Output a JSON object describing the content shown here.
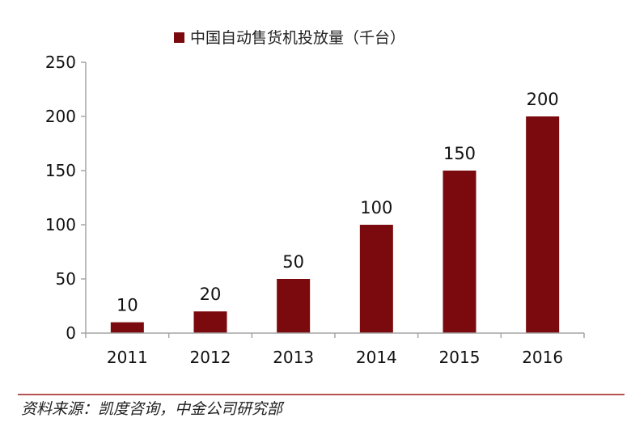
{
  "chart_data": {
    "type": "bar",
    "title": "",
    "xlabel": "",
    "ylabel": "",
    "categories": [
      "2011",
      "2012",
      "2013",
      "2014",
      "2015",
      "2016"
    ],
    "series": [
      {
        "name": "中国自动售货机投放量（千台）",
        "values": [
          10,
          20,
          50,
          100,
          150,
          200
        ]
      }
    ],
    "ylim": [
      0,
      250
    ],
    "yticks": [
      0,
      50,
      100,
      150,
      200,
      250
    ],
    "data_labels": [
      "10",
      "20",
      "50",
      "100",
      "150",
      "200"
    ],
    "legend_position": "top-center",
    "grid": false
  },
  "colors": {
    "bar": "#7a0a0d",
    "axis": "#a6a6a6",
    "source_rule": "#9e1b1d"
  },
  "source": "资料来源：凯度咨询，中金公司研究部"
}
